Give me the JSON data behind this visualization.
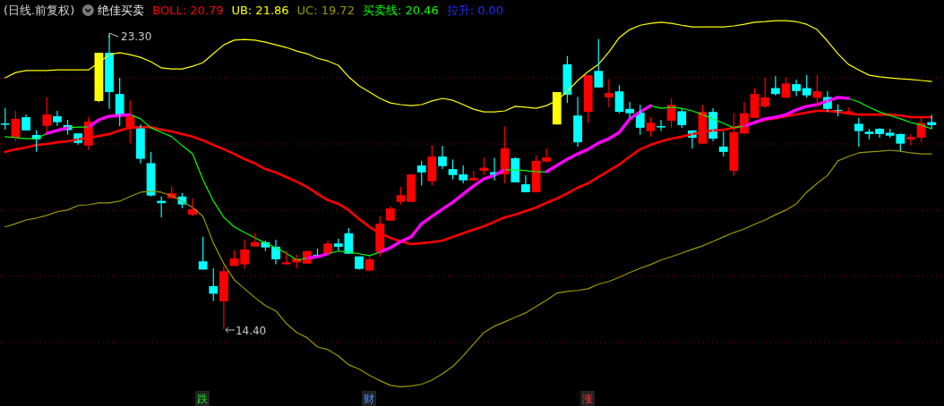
{
  "chart_data": {
    "type": "candlestick",
    "title": "(日线.前复权)",
    "subtitle": "绝佳买卖",
    "categories": [
      null,
      null,
      null,
      null,
      null,
      null,
      null,
      null,
      null,
      null,
      null,
      null,
      null,
      null,
      null,
      null,
      null,
      null,
      null,
      null,
      null,
      null,
      null,
      null,
      null,
      null,
      null,
      null,
      null,
      null,
      null,
      null,
      null,
      null,
      null,
      null,
      null,
      null,
      null,
      null,
      null,
      null,
      null,
      null,
      null,
      null,
      null,
      null,
      null,
      null,
      null,
      null,
      null,
      null,
      null,
      null,
      null,
      null,
      null,
      null,
      null,
      null,
      null,
      null,
      null,
      null,
      null,
      null,
      null,
      null,
      null,
      null,
      null,
      null,
      null,
      null,
      null,
      null,
      null,
      null,
      null,
      null,
      null,
      null,
      null,
      null,
      null,
      null,
      null,
      null
    ],
    "ohlc": [
      [
        20.62,
        21.09,
        20.43,
        20.6
      ],
      [
        20.19,
        21.0,
        20.09,
        20.76
      ],
      [
        20.81,
        20.89,
        20.41,
        20.41
      ],
      [
        20.27,
        20.42,
        19.76,
        20.14
      ],
      [
        20.55,
        21.41,
        20.34,
        20.89
      ],
      [
        20.84,
        21.0,
        20.55,
        20.66
      ],
      [
        20.57,
        20.73,
        20.28,
        20.42
      ],
      [
        20.32,
        20.32,
        19.98,
        20.03
      ],
      [
        19.95,
        20.82,
        19.82,
        20.68
      ],
      [
        21.3,
        22.76,
        21.27,
        22.76
      ],
      [
        22.76,
        23.3,
        21.06,
        21.57
      ],
      [
        21.51,
        22.0,
        20.54,
        20.86
      ],
      [
        20.46,
        21.32,
        20.03,
        20.84
      ],
      [
        20.54,
        20.59,
        19.41,
        19.55
      ],
      [
        19.42,
        19.76,
        18.41,
        18.44
      ],
      [
        18.28,
        18.41,
        17.78,
        18.21
      ],
      [
        18.36,
        18.72,
        18.36,
        18.51
      ],
      [
        18.41,
        18.51,
        18.06,
        18.17
      ],
      [
        17.86,
        18.36,
        17.82,
        18.03
      ],
      [
        16.45,
        17.19,
        16.2,
        16.2
      ],
      [
        15.7,
        16.24,
        15.25,
        15.47
      ],
      [
        15.24,
        16.31,
        14.4,
        16.15
      ],
      [
        16.31,
        16.78,
        16.31,
        16.54
      ],
      [
        16.36,
        17.1,
        16.22,
        16.81
      ],
      [
        16.9,
        17.3,
        16.9,
        17.03
      ],
      [
        17.03,
        17.07,
        16.76,
        16.87
      ],
      [
        16.89,
        17.1,
        16.36,
        16.51
      ],
      [
        16.36,
        16.76,
        16.36,
        16.42
      ],
      [
        16.42,
        16.65,
        16.24,
        16.53
      ],
      [
        16.38,
        16.77,
        16.38,
        16.76
      ],
      [
        16.65,
        16.84,
        16.6,
        16.6
      ],
      [
        16.69,
        17.08,
        16.65,
        16.99
      ],
      [
        16.99,
        17.13,
        16.78,
        16.89
      ],
      [
        17.3,
        17.46,
        16.68,
        16.68
      ],
      [
        16.6,
        16.6,
        16.2,
        16.22
      ],
      [
        16.17,
        16.6,
        16.14,
        16.51
      ],
      [
        16.74,
        17.82,
        16.6,
        17.59
      ],
      [
        17.68,
        18.11,
        17.68,
        18.05
      ],
      [
        18.25,
        18.7,
        18.16,
        18.45
      ],
      [
        18.25,
        19.08,
        18.25,
        19.08
      ],
      [
        19.35,
        19.49,
        18.74,
        19.14
      ],
      [
        18.87,
        19.96,
        18.74,
        19.62
      ],
      [
        19.62,
        19.94,
        19.24,
        19.33
      ],
      [
        19.24,
        19.53,
        18.93,
        19.06
      ],
      [
        19.08,
        19.35,
        18.81,
        18.9
      ],
      [
        18.9,
        19.19,
        18.9,
        18.97
      ],
      [
        19.19,
        19.58,
        19.06,
        19.28
      ],
      [
        19.15,
        19.58,
        18.9,
        19.06
      ],
      [
        19.08,
        20.52,
        18.81,
        19.87
      ],
      [
        19.57,
        19.6,
        18.84,
        18.84
      ],
      [
        18.78,
        19.05,
        18.54,
        18.54
      ],
      [
        18.54,
        19.65,
        18.54,
        19.49
      ],
      [
        19.47,
        19.86,
        19.44,
        19.59
      ],
      [
        20.59,
        21.57,
        20.59,
        21.57
      ],
      [
        22.41,
        22.66,
        21.24,
        21.49
      ],
      [
        20.86,
        21.42,
        19.92,
        20.05
      ],
      [
        20.97,
        22.08,
        20.64,
        22.08
      ],
      [
        22.21,
        23.18,
        21.71,
        21.71
      ],
      [
        21.41,
        21.96,
        21.11,
        21.54
      ],
      [
        21.59,
        21.78,
        20.93,
        20.97
      ],
      [
        21.06,
        21.27,
        20.79,
        20.93
      ],
      [
        20.95,
        21.18,
        20.28,
        20.49
      ],
      [
        20.39,
        20.81,
        20.22,
        20.64
      ],
      [
        20.54,
        20.73,
        20.39,
        20.52
      ],
      [
        20.7,
        21.38,
        20.49,
        21.18
      ],
      [
        20.99,
        21.06,
        20.49,
        20.57
      ],
      [
        20.41,
        20.41,
        19.86,
        20.19
      ],
      [
        20.01,
        21.18,
        20.01,
        20.97
      ],
      [
        20.97,
        21.08,
        20.09,
        20.16
      ],
      [
        19.92,
        20.37,
        19.62,
        19.76
      ],
      [
        19.19,
        20.93,
        19.04,
        20.36
      ],
      [
        20.32,
        21.27,
        20.3,
        20.93
      ],
      [
        20.79,
        21.69,
        20.79,
        21.51
      ],
      [
        21.13,
        22.01,
        21.09,
        21.41
      ],
      [
        21.69,
        22.05,
        21.47,
        21.51
      ],
      [
        21.4,
        22.01,
        21.38,
        21.83
      ],
      [
        21.81,
        21.94,
        21.45,
        21.6
      ],
      [
        21.69,
        22.08,
        21.4,
        21.47
      ],
      [
        21.4,
        22.08,
        21.13,
        21.59
      ],
      [
        21.42,
        21.6,
        20.97,
        21.06
      ],
      [
        21.03,
        21.2,
        20.84,
        21.02
      ],
      [
        20.9,
        21.11,
        20.88,
        20.99
      ],
      [
        20.61,
        20.79,
        19.92,
        20.39
      ],
      [
        20.37,
        20.46,
        20.14,
        20.3
      ],
      [
        20.46,
        20.48,
        20.19,
        20.3
      ],
      [
        20.34,
        20.46,
        20.19,
        20.25
      ],
      [
        20.3,
        20.32,
        19.78,
        20.01
      ],
      [
        20.14,
        20.3,
        19.95,
        20.21
      ],
      [
        20.19,
        20.79,
        20.05,
        20.63
      ],
      [
        20.66,
        20.88,
        20.46,
        20.57
      ]
    ],
    "colors": [
      "#00ffff",
      "#ff0000",
      "#00ffff",
      "#00ffff",
      "#ff0000",
      "#00ffff",
      "#00ffff",
      "#00ffff",
      "#ff0000",
      "#ffff00",
      "#00ffff",
      "#00ffff",
      "#ff0000",
      "#00ffff",
      "#00ffff",
      "#00ffff",
      "#ff0000",
      "#00ffff",
      "#ff0000",
      "#00ffff",
      "#00ffff",
      "#ff0000",
      "#ff0000",
      "#ff0000",
      "#ff0000",
      "#00ffff",
      "#00ffff",
      "#ff0000",
      "#ff0000",
      "#ff0000",
      "#00ffff",
      "#ff0000",
      "#00ffff",
      "#00ffff",
      "#00ffff",
      "#ff0000",
      "#ff0000",
      "#ff0000",
      "#ff0000",
      "#ff0000",
      "#00ffff",
      "#ff0000",
      "#00ffff",
      "#00ffff",
      "#00ffff",
      "#ff0000",
      "#ff0000",
      "#00ffff",
      "#ff0000",
      "#00ffff",
      "#00ffff",
      "#ff0000",
      "#ff0000",
      "#ffff00",
      "#00ffff",
      "#00ffff",
      "#ff0000",
      "#00ffff",
      "#ff0000",
      "#00ffff",
      "#00ffff",
      "#00ffff",
      "#ff0000",
      "#00ffff",
      "#ff0000",
      "#00ffff",
      "#00ffff",
      "#ff0000",
      "#00ffff",
      "#00ffff",
      "#ff0000",
      "#ff0000",
      "#ff0000",
      "#ff0000",
      "#00ffff",
      "#ff0000",
      "#00ffff",
      "#00ffff",
      "#ff0000",
      "#00ffff",
      "#00ffff",
      "#ff0000",
      "#00ffff",
      "#00ffff",
      "#00ffff",
      "#00ffff",
      "#00ffff",
      "#ff0000",
      "#ff0000",
      "#00ffff"
    ],
    "series": [
      {
        "name": "BOLL: 20.79",
        "type": "line",
        "color": "#ff0000",
        "values": [
          19.76,
          19.84,
          19.89,
          19.97,
          20.0,
          20.05,
          20.08,
          20.14,
          20.19,
          20.24,
          20.3,
          20.41,
          20.49,
          20.51,
          20.51,
          20.43,
          20.38,
          20.3,
          20.22,
          20.11,
          19.97,
          19.84,
          19.7,
          19.54,
          19.41,
          19.24,
          19.14,
          19.0,
          18.86,
          18.7,
          18.49,
          18.3,
          18.19,
          18.0,
          17.73,
          17.49,
          17.3,
          17.16,
          17.05,
          16.97,
          17.0,
          17.03,
          17.08,
          17.19,
          17.3,
          17.41,
          17.51,
          17.65,
          17.78,
          17.86,
          17.97,
          18.08,
          18.22,
          18.35,
          18.51,
          18.68,
          18.81,
          19.0,
          19.19,
          19.38,
          19.62,
          19.84,
          19.97,
          20.08,
          20.16,
          20.22,
          20.3,
          20.35,
          20.41,
          20.43,
          20.49,
          20.57,
          20.65,
          20.73,
          20.78,
          20.84,
          20.89,
          20.95,
          21.0,
          21.0,
          20.97,
          20.92,
          20.89,
          20.89,
          20.89,
          20.89,
          20.86,
          20.81,
          20.81,
          20.81
        ]
      },
      {
        "name": "UB: 21.86",
        "type": "line",
        "color": "#ffff00",
        "values": [
          22.0,
          22.16,
          22.22,
          22.22,
          22.22,
          22.24,
          22.24,
          22.24,
          22.24,
          22.46,
          22.7,
          22.76,
          22.7,
          22.62,
          22.49,
          22.3,
          22.27,
          22.27,
          22.35,
          22.46,
          22.73,
          23.0,
          23.14,
          23.16,
          23.14,
          23.08,
          23.0,
          22.92,
          22.81,
          22.73,
          22.59,
          22.51,
          22.38,
          22.03,
          21.76,
          21.57,
          21.38,
          21.24,
          21.19,
          21.16,
          21.19,
          21.3,
          21.38,
          21.32,
          21.19,
          21.05,
          20.97,
          20.97,
          21.0,
          21.14,
          21.11,
          21.08,
          21.16,
          21.32,
          21.59,
          21.92,
          22.19,
          22.41,
          22.78,
          23.22,
          23.46,
          23.59,
          23.65,
          23.68,
          23.65,
          23.59,
          23.54,
          23.54,
          23.54,
          23.54,
          23.57,
          23.62,
          23.68,
          23.7,
          23.73,
          23.73,
          23.7,
          23.62,
          23.46,
          23.11,
          22.73,
          22.41,
          22.24,
          22.08,
          22.03,
          22.0,
          21.97,
          21.95,
          21.92,
          21.89
        ]
      },
      {
        "name": "UC: 19.72",
        "type": "line",
        "color": "#999900",
        "values": [
          17.49,
          17.59,
          17.7,
          17.76,
          17.84,
          17.95,
          18.0,
          18.14,
          18.16,
          18.22,
          18.22,
          18.27,
          18.41,
          18.54,
          18.57,
          18.54,
          18.43,
          18.27,
          18.08,
          17.81,
          17.0,
          16.38,
          15.89,
          15.62,
          15.35,
          15.11,
          14.95,
          14.57,
          14.3,
          14.14,
          13.86,
          13.78,
          13.59,
          13.32,
          13.19,
          13.0,
          12.84,
          12.7,
          12.65,
          12.68,
          12.73,
          12.86,
          13.05,
          13.27,
          13.59,
          13.95,
          14.3,
          14.49,
          14.62,
          14.76,
          14.89,
          15.08,
          15.27,
          15.49,
          15.54,
          15.57,
          15.62,
          15.76,
          15.84,
          15.97,
          16.11,
          16.24,
          16.35,
          16.49,
          16.59,
          16.7,
          16.81,
          16.92,
          17.05,
          17.19,
          17.32,
          17.43,
          17.57,
          17.7,
          17.86,
          18.0,
          18.19,
          18.54,
          18.81,
          19.05,
          19.49,
          19.62,
          19.73,
          19.76,
          19.78,
          19.81,
          19.78,
          19.73,
          19.7,
          19.7
        ]
      },
      {
        "name": "买卖线: 20.46",
        "type": "line",
        "color": "#00ff00",
        "values": [
          20.22,
          20.19,
          20.16,
          20.16,
          20.32,
          null,
          20.49,
          20.51,
          20.51,
          null,
          null,
          null,
          20.89,
          20.76,
          20.49,
          20.35,
          20.22,
          19.95,
          19.7,
          18.92,
          18.27,
          17.78,
          17.49,
          17.32,
          17.16,
          17.0,
          16.86,
          16.7,
          16.49,
          16.54,
          null,
          16.68,
          16.76,
          16.73,
          16.68,
          16.62,
          16.73,
          null,
          null,
          null,
          null,
          null,
          null,
          null,
          null,
          null,
          null,
          null,
          19.22,
          19.22,
          19.19,
          19.16,
          19.16,
          null,
          null,
          null,
          null,
          null,
          null,
          null,
          null,
          null,
          21.16,
          21.08,
          21.11,
          21.08,
          21.0,
          20.89,
          20.76,
          20.62,
          20.49,
          20.54,
          null,
          null,
          null,
          null,
          null,
          null,
          null,
          null,
          null,
          21.38,
          21.27,
          21.11,
          20.97,
          20.86,
          20.76,
          20.65,
          20.57,
          20.46
        ]
      },
      {
        "type": "line",
        "color": "#ff00ff",
        "values": [
          null,
          null,
          null,
          null,
          20.32,
          20.41,
          20.49,
          null,
          20.51,
          20.73,
          20.84,
          20.86,
          20.89,
          null,
          null,
          null,
          null,
          null,
          null,
          null,
          null,
          null,
          null,
          null,
          null,
          null,
          null,
          null,
          null,
          16.54,
          16.59,
          16.68,
          null,
          null,
          null,
          null,
          16.73,
          16.86,
          17.05,
          17.19,
          17.59,
          17.81,
          18.03,
          18.24,
          18.49,
          18.73,
          18.95,
          19.05,
          19.22,
          null,
          null,
          null,
          19.16,
          19.35,
          19.54,
          19.7,
          19.84,
          20.03,
          20.16,
          20.35,
          20.76,
          20.97,
          21.16,
          null,
          null,
          null,
          null,
          null,
          null,
          null,
          null,
          20.54,
          20.65,
          20.76,
          20.81,
          20.89,
          21.03,
          21.14,
          21.19,
          21.3,
          21.41,
          21.38,
          null,
          null,
          null,
          null,
          null,
          null,
          null,
          null
        ]
      }
    ],
    "yticks": [
      {
        "value": 14,
        "label": null
      },
      {
        "value": 16,
        "label": null
      },
      {
        "value": 18,
        "label": null
      },
      {
        "value": 20,
        "label": null
      },
      {
        "value": 22,
        "label": null
      }
    ],
    "grid": "y",
    "legend": "top left",
    "annotations": [
      "23.30",
      "14.40",
      "拉升: 0.00",
      "跌",
      "财",
      "涨"
    ]
  }
}
